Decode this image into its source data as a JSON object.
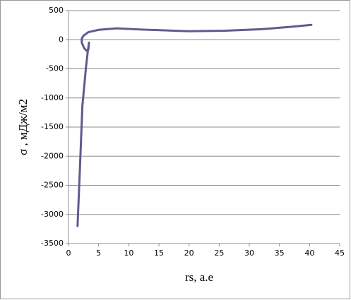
{
  "chart_data": {
    "type": "line",
    "xlabel": "rs, a.e",
    "ylabel": "σ , мДж/м2",
    "series": [
      {
        "color": "#5c5c8e",
        "x": [
          1.5,
          1.9,
          2.3,
          2.7,
          2.9,
          3.2,
          3.4,
          3.3,
          3.0,
          2.6,
          2.2,
          2.2,
          2.5,
          3.3,
          5,
          8,
          12,
          16,
          20,
          26,
          32,
          36.7,
          40.3
        ],
        "values": [
          -3200,
          -2200,
          -1140,
          -700,
          -470,
          -200,
          -50,
          -170,
          -190,
          -145,
          -50,
          20,
          70,
          130,
          170,
          195,
          175,
          160,
          145,
          155,
          180,
          220,
          255
        ]
      }
    ],
    "xlim": [
      0,
      45
    ],
    "xticks": [
      0,
      5,
      10,
      15,
      20,
      25,
      30,
      35,
      40,
      45
    ],
    "ylim": [
      -3500,
      500
    ],
    "yticks": [
      500,
      0,
      -500,
      -1000,
      -1500,
      -2000,
      -2500,
      -3000,
      -3500
    ],
    "grid": true
  }
}
